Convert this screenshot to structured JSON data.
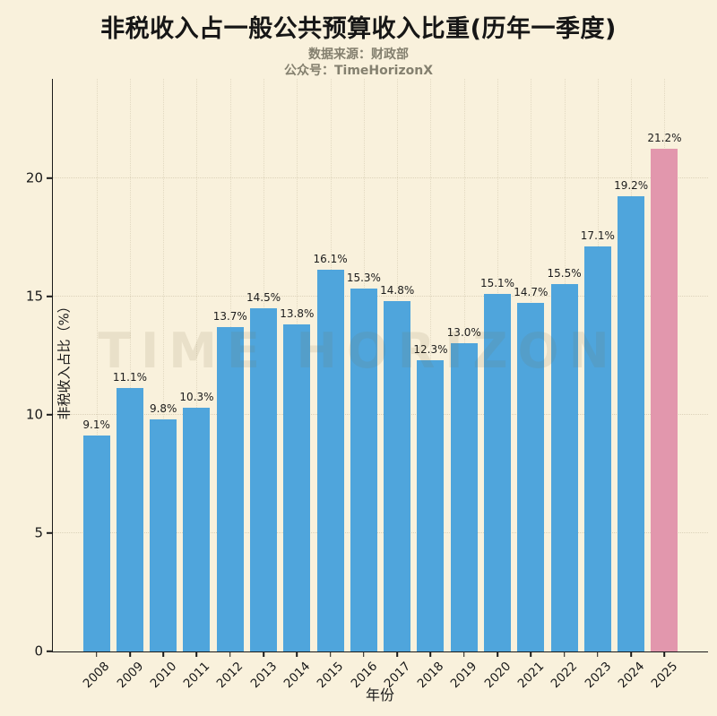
{
  "page": {
    "background": "#f9f1dc",
    "title_color": "#161616",
    "subtitle_color": "#84806f"
  },
  "header": {
    "title": "非税收入占一般公共预算收入比重(历年一季度)",
    "subtitle_source": "数据来源：财政部",
    "subtitle_account": "公众号：TimeHorizonX"
  },
  "watermark": "TIME HORIZON",
  "chart_data": {
    "type": "bar",
    "title": "非税收入占一般公共预算收入比重(历年一季度)",
    "categories": [
      "2008",
      "2009",
      "2010",
      "2011",
      "2012",
      "2013",
      "2014",
      "2015",
      "2016",
      "2017",
      "2018",
      "2019",
      "2020",
      "2021",
      "2022",
      "2023",
      "2024",
      "2025"
    ],
    "values": [
      9.1,
      11.1,
      9.8,
      10.3,
      13.7,
      14.5,
      13.8,
      16.1,
      15.3,
      14.8,
      12.3,
      13.0,
      15.1,
      14.7,
      15.5,
      17.1,
      19.2,
      21.2
    ],
    "value_labels": [
      "9.1%",
      "11.1%",
      "9.8%",
      "10.3%",
      "13.7%",
      "14.5%",
      "13.8%",
      "16.1%",
      "15.3%",
      "14.8%",
      "12.3%",
      "13.0%",
      "15.1%",
      "14.7%",
      "15.5%",
      "17.1%",
      "19.2%",
      "21.2%"
    ],
    "xlabel": "年份",
    "ylabel": "非税收入占比（%）",
    "yticks": [
      0,
      5,
      10,
      15,
      20
    ],
    "ytick_labels": [
      "0",
      "5",
      "10",
      "15",
      "20"
    ],
    "ylim": [
      0,
      24.2
    ],
    "grid": "dotted",
    "legend": "none",
    "bar_color": "#4fa5dc",
    "highlight_color": "#e297ad",
    "highlight_index": 17
  }
}
